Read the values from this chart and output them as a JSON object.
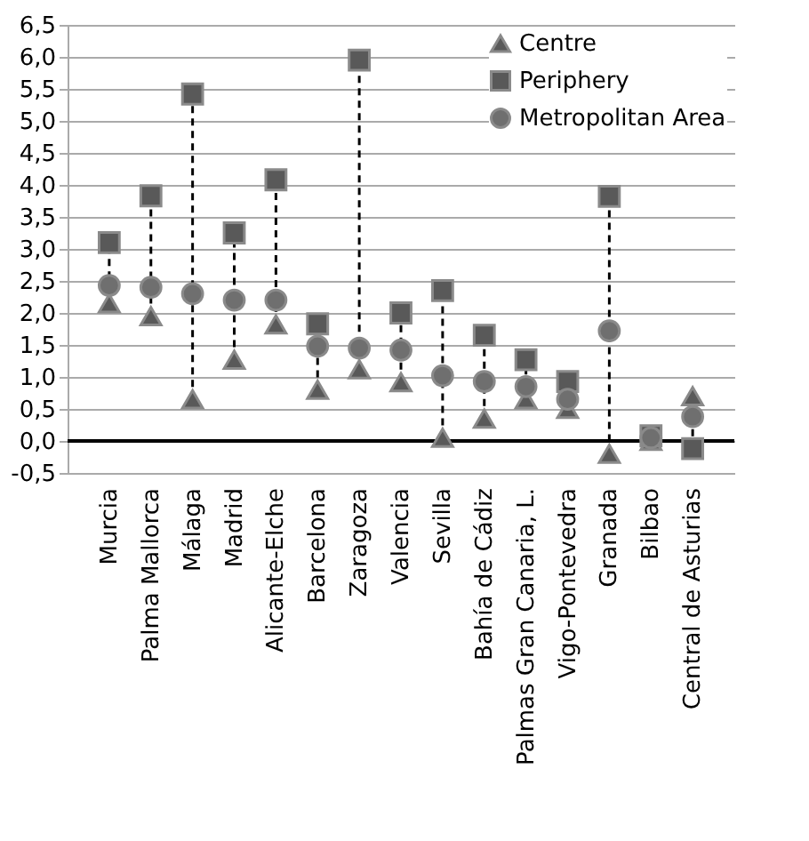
{
  "chart_data": {
    "type": "scatter",
    "categories": [
      "Murcia",
      "Palma Mallorca",
      "Málaga",
      "Madrid",
      "Alicante-Elche",
      "Barcelona",
      "Zaragoza",
      "Valencia",
      "Sevilla",
      "Bahía de Cádiz",
      "Palmas Gran Canaria, L.",
      "Vigo-Pontevedra",
      "Granada",
      "Bilbao",
      "Central de Asturias"
    ],
    "series": [
      {
        "name": "Centre",
        "color": "#595959",
        "marker": "triangle",
        "values": [
          2.15,
          1.95,
          0.65,
          1.27,
          1.82,
          0.8,
          1.12,
          0.92,
          0.05,
          0.35,
          0.65,
          0.5,
          -0.2,
          0.0,
          0.7
        ]
      },
      {
        "name": "Periphery",
        "color": "#595959",
        "marker": "square",
        "values": [
          3.1,
          3.83,
          5.42,
          3.25,
          4.08,
          1.83,
          5.95,
          2.0,
          2.35,
          1.65,
          1.27,
          0.93,
          3.82,
          0.08,
          -0.12
        ]
      },
      {
        "name": "Metropolitan Area",
        "color": "#6f6f6f",
        "marker": "circle",
        "values": [
          2.43,
          2.4,
          2.3,
          2.2,
          2.2,
          1.48,
          1.45,
          1.42,
          1.02,
          0.93,
          0.85,
          0.65,
          1.72,
          0.05,
          0.38
        ]
      }
    ],
    "ylim": [
      -0.5,
      6.5
    ],
    "yticks": [
      {
        "value": -0.5,
        "label": "-0,5"
      },
      {
        "value": 0,
        "label": "0,0"
      },
      {
        "value": 0.5,
        "label": "0,5"
      },
      {
        "value": 1,
        "label": "1,0"
      },
      {
        "value": 1.5,
        "label": "1,5"
      },
      {
        "value": 2,
        "label": "2,0"
      },
      {
        "value": 2.5,
        "label": "2,5"
      },
      {
        "value": 3,
        "label": "3,0"
      },
      {
        "value": 3.5,
        "label": "3,5"
      },
      {
        "value": 4,
        "label": "4,0"
      },
      {
        "value": 4.5,
        "label": "4,5"
      },
      {
        "value": 5,
        "label": "5,0"
      },
      {
        "value": 5.5,
        "label": "5,5"
      },
      {
        "value": 6,
        "label": "6,0"
      },
      {
        "value": 6.5,
        "label": "6,5"
      }
    ],
    "grid": "y",
    "legend": "top right"
  }
}
